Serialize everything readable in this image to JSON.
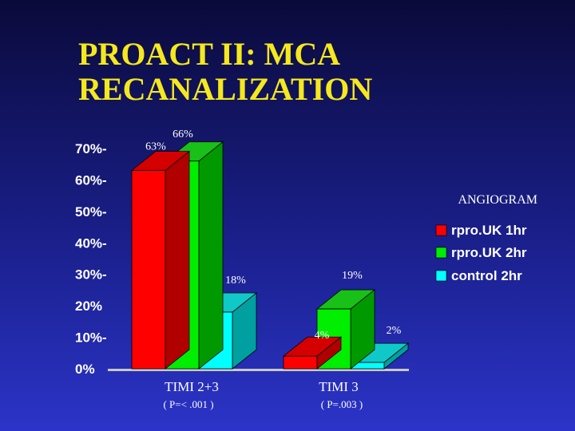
{
  "title_lines": [
    "PROACT II: MCA",
    "RECANALIZATION"
  ],
  "annotation": "ANGIOGRAM",
  "colors": {
    "title": "#f5e81d",
    "series": [
      "#ff0000",
      "#00ee00",
      "#00ffff"
    ],
    "series_dark": [
      "#b00000",
      "#009a00",
      "#00a0a0"
    ],
    "series_top": [
      "#d40000",
      "#18c018",
      "#10c8c8"
    ]
  },
  "chart_data": {
    "type": "bar",
    "title": "PROACT II: MCA RECANALIZATION",
    "categories": [
      "TIMI 2+3",
      "TIMI 3"
    ],
    "category_notes": [
      "( P=< .001 )",
      "( P=.003 )"
    ],
    "series": [
      {
        "name": "rpro.UK 1hr",
        "values": [
          63,
          4
        ],
        "labels": [
          "63%",
          "4%"
        ]
      },
      {
        "name": "rpro.UK 2hr",
        "values": [
          66,
          19
        ],
        "labels": [
          "66%",
          "19%"
        ]
      },
      {
        "name": "control 2hr",
        "values": [
          18,
          2
        ],
        "labels": [
          "18%",
          "2%"
        ]
      }
    ],
    "ylim": [
      0,
      70
    ],
    "yticks": [
      {
        "value": 0,
        "label": "0%"
      },
      {
        "value": 10,
        "label": "10%-"
      },
      {
        "value": 20,
        "label": "20%"
      },
      {
        "value": 30,
        "label": "30%-"
      },
      {
        "value": 40,
        "label": "40%-"
      },
      {
        "value": 50,
        "label": "50%-"
      },
      {
        "value": 60,
        "label": "60%-"
      },
      {
        "value": 70,
        "label": "70%-"
      }
    ],
    "xlabel": "",
    "ylabel": "",
    "grid": false,
    "legend": "right"
  }
}
